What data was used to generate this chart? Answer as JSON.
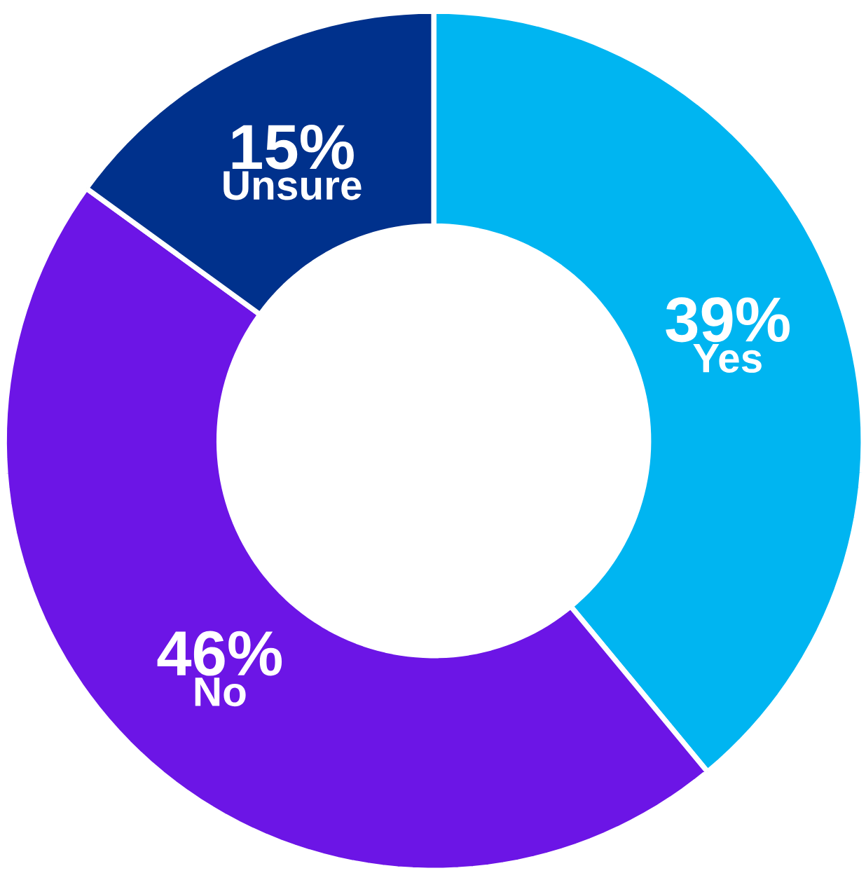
{
  "chart_data": {
    "type": "donut",
    "categories": [
      "Yes",
      "No",
      "Unsure"
    ],
    "values": [
      39,
      46,
      15
    ],
    "value_labels": [
      "39%",
      "46%",
      "15%"
    ],
    "colors": [
      "#00b5f1",
      "#6c15e6",
      "#00318c"
    ],
    "legend": false
  }
}
